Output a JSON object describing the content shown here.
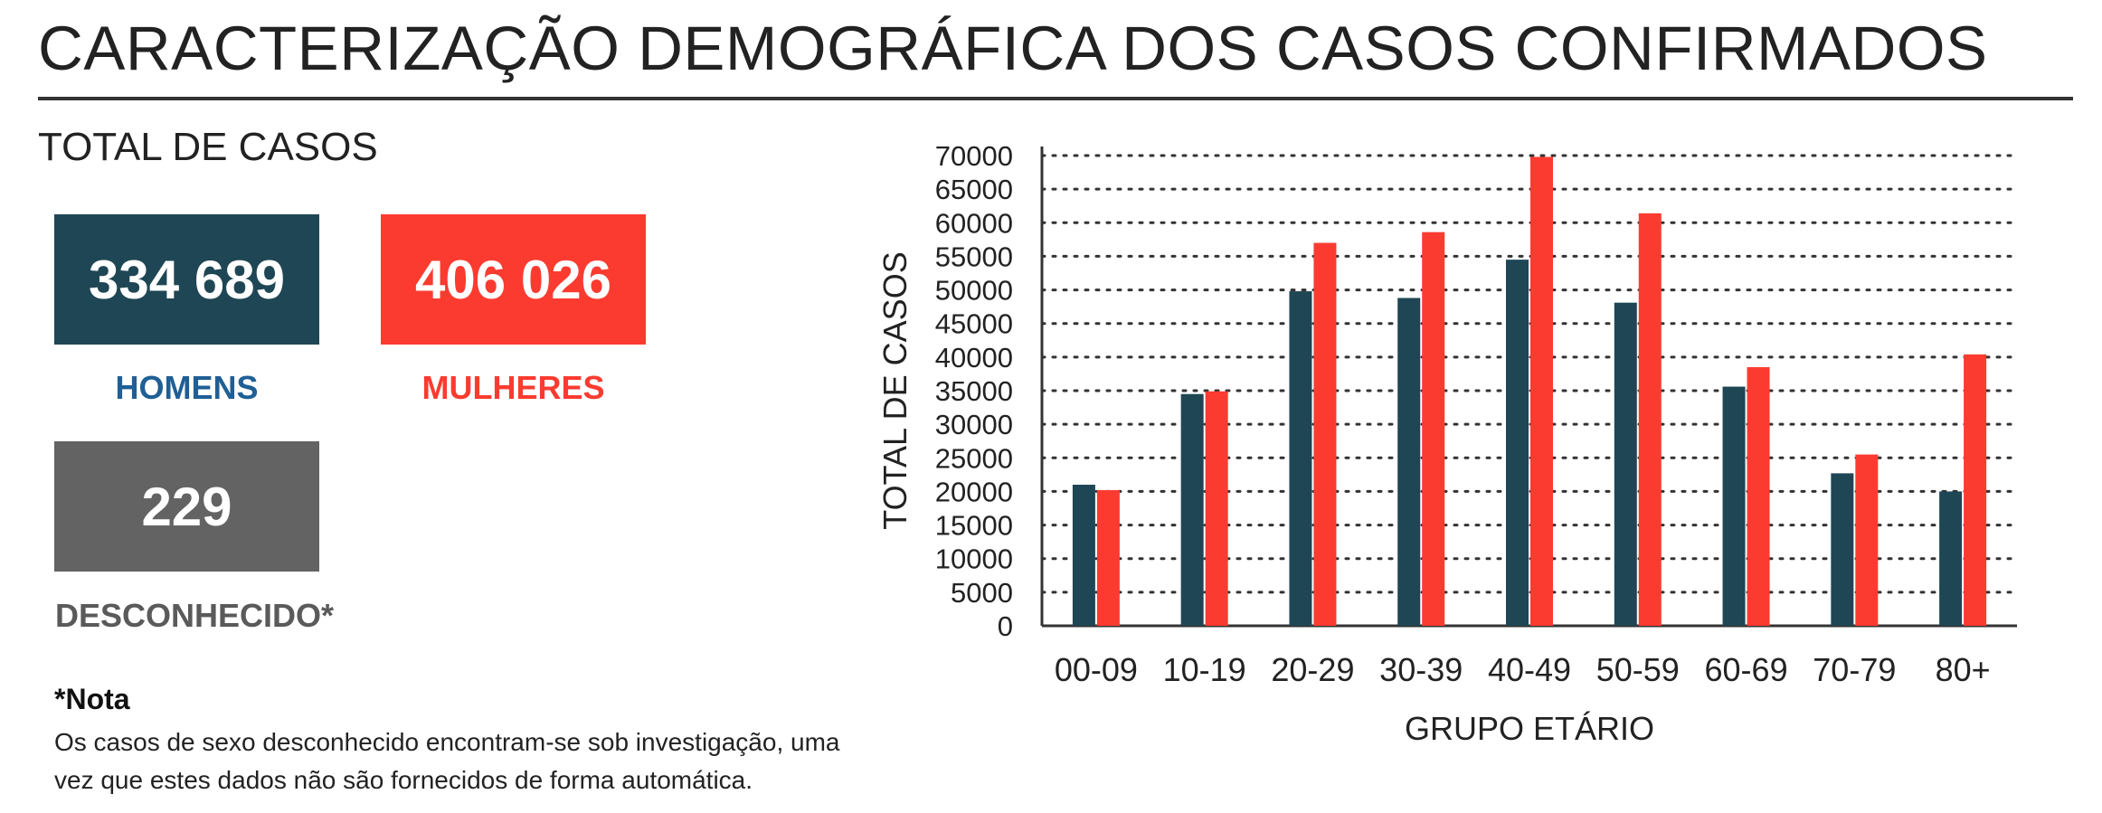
{
  "title": "CARACTERIZAÇÃO DEMOGRÁFICA DOS CASOS CONFIRMADOS",
  "subtitle": "TOTAL DE CASOS",
  "stats": {
    "men": {
      "value": "334 689",
      "label": "HOMENS"
    },
    "women": {
      "value": "406 026",
      "label": "MULHERES"
    },
    "unknown": {
      "value": "229",
      "label": "DESCONHECIDO*"
    }
  },
  "note": {
    "title": "*Nota",
    "text": "Os casos de sexo desconhecido encontram-se sob investigação, uma vez que estes dados não são fornecidos de forma automática."
  },
  "colors": {
    "men": "#1f4654",
    "women": "#fb3b30",
    "unknown": "#636363",
    "men_label": "#1f5f95",
    "women_label": "#fb3b30",
    "unknown_label": "#5a5a5a"
  },
  "chart_data": {
    "type": "bar",
    "xlabel": "GRUPO ETÁRIO",
    "ylabel": "TOTAL DE CASOS",
    "categories": [
      "00-09",
      "10-19",
      "20-29",
      "30-39",
      "40-49",
      "50-59",
      "60-69",
      "70-79",
      "80+"
    ],
    "series": [
      {
        "values": [
          21000,
          34500,
          49800,
          48800,
          54500,
          48100,
          35600,
          22700,
          20000
        ],
        "color": "#1f4654"
      },
      {
        "values": [
          20200,
          34900,
          57000,
          58600,
          69800,
          61400,
          38500,
          25500,
          40400
        ],
        "color": "#fb3b30"
      }
    ],
    "ylim": [
      0,
      70000
    ],
    "yticks": [
      0,
      5000,
      10000,
      15000,
      20000,
      25000,
      30000,
      35000,
      40000,
      45000,
      50000,
      55000,
      60000,
      65000,
      70000
    ],
    "grid": true,
    "legend": "none"
  }
}
